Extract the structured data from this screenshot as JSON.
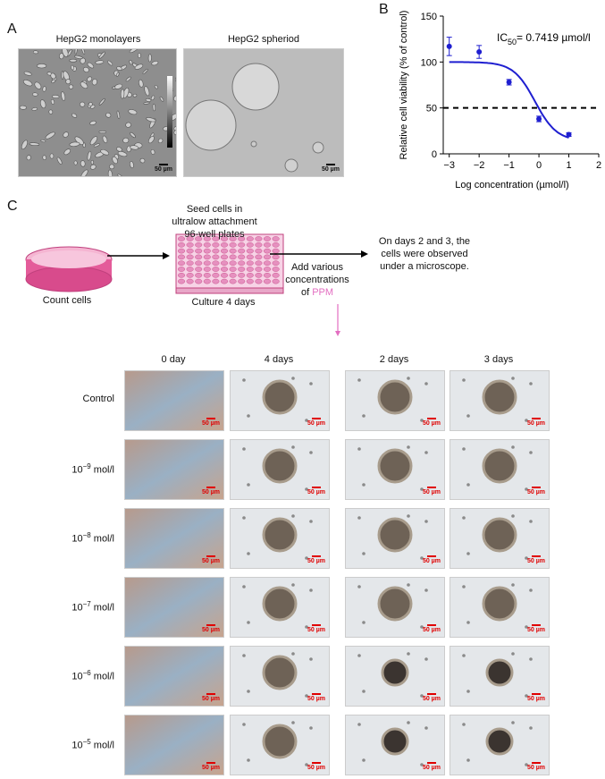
{
  "panels": {
    "a": "A",
    "b": "B",
    "c": "C"
  },
  "panelA": {
    "left_title": "HepG2 monolayers",
    "right_title": "HepG2 spheriod",
    "scale_left": "50 µm",
    "scale_right": "50 µm"
  },
  "chart_data": {
    "type": "scatter",
    "ylabel": "Relative cell viability (% of control)",
    "xlabel": "Log concentration (µmol/l)",
    "annotation_prefix": "IC",
    "annotation_sub": "50",
    "annotation_value": "= 0.7419 µmol/l",
    "xlim": [
      -3.2,
      2
    ],
    "ylim": [
      0,
      150
    ],
    "xticks": [
      "-3",
      "-2",
      "-1",
      "0",
      "1",
      "2"
    ],
    "yticks": [
      "0",
      "50",
      "100",
      "150"
    ],
    "points": [
      {
        "x": -3,
        "y": 117,
        "err": 10
      },
      {
        "x": -2,
        "y": 111,
        "err": 7
      },
      {
        "x": -1,
        "y": 78,
        "err": 3
      },
      {
        "x": 0,
        "y": 38,
        "err": 3
      },
      {
        "x": 1,
        "y": 21,
        "err": 2
      }
    ],
    "reference_y": 50,
    "fit": {
      "top": 100,
      "bottom": 14,
      "logIC50": -0.13,
      "hill": -1.2
    },
    "colors": {
      "series": "#1f1fd0",
      "reference": "#000000"
    }
  },
  "workflow": {
    "step1_label": "Count cells",
    "step2_text1": "Seed cells in",
    "step2_text2": "ultralow attachment",
    "step2_text3": "96-well plates",
    "step2_label": "Culture 4 days",
    "step3_text1": "Add various",
    "step3_text2": "concentrations",
    "step3_text3": "of",
    "step3_drug": "PPM",
    "step4_text1": "On days 2 and 3, the",
    "step4_text2": "cells were observed",
    "step4_text3": "under a microscope.",
    "colors": {
      "dish": "#e45c9a",
      "plate": "#e690bf",
      "drug": "#e36ec1"
    }
  },
  "grid": {
    "columns": [
      "0 day",
      "4 days",
      "2 days",
      "3 days"
    ],
    "rows": [
      {
        "label": "Control",
        "sup": ""
      },
      {
        "label": "10",
        "sup": "−9",
        "unit": " mol/l"
      },
      {
        "label": "10",
        "sup": "−8",
        "unit": " mol/l"
      },
      {
        "label": "10",
        "sup": "−7",
        "unit": " mol/l"
      },
      {
        "label": "10",
        "sup": "−6",
        "unit": " mol/l"
      },
      {
        "label": "10",
        "sup": "−5",
        "unit": " mol/l"
      }
    ],
    "scale_text": "50 µm",
    "scale_color": "#e00000"
  }
}
